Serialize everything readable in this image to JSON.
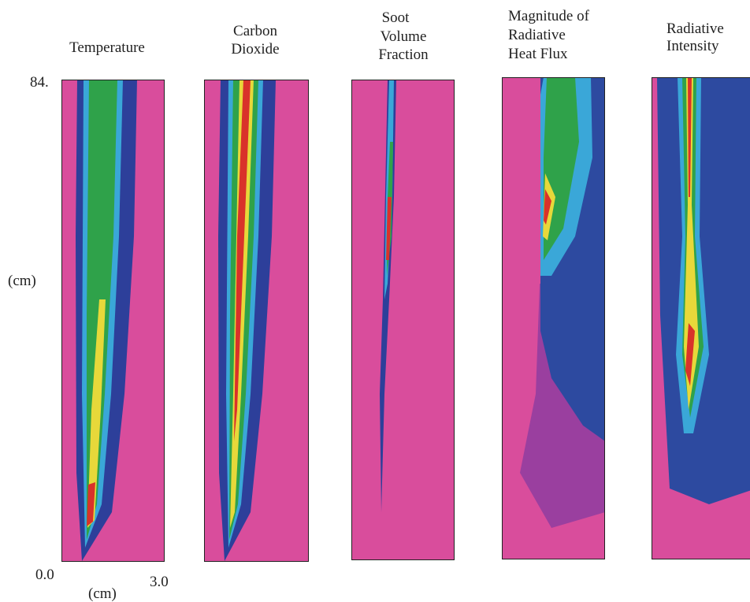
{
  "panels": [
    {
      "title_lines": [
        "Temperature"
      ]
    },
    {
      "title_lines": [
        "Carbon",
        "Dioxide"
      ]
    },
    {
      "title_lines": [
        "Soot",
        "Volume",
        "Fraction"
      ]
    },
    {
      "title_lines": [
        "Magnitude of",
        "Radiative",
        "Heat Flux"
      ]
    },
    {
      "title_lines": [
        "Radiative",
        "Intensity"
      ]
    }
  ],
  "axes": {
    "y_top": "84.",
    "y_unit": "(cm)",
    "x_left": "0.0",
    "x_right": "3.0",
    "x_unit": "(cm)"
  }
}
